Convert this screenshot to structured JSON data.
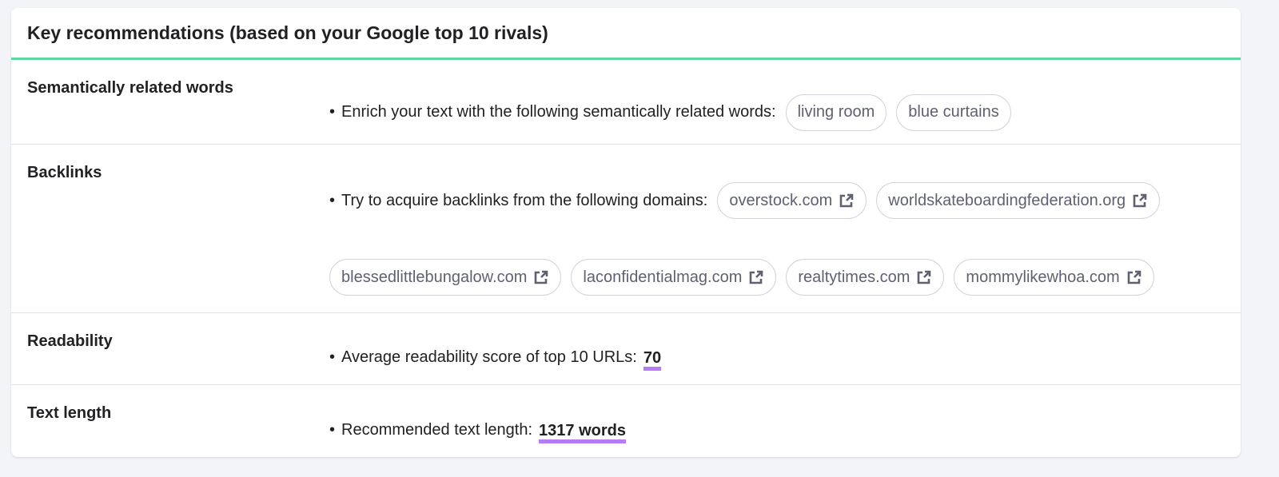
{
  "title": "Key recommendations (based on your Google top 10 rivals)",
  "colors": {
    "accent_line": "#5ed7a5",
    "underline": "#b57cf6"
  },
  "rows": [
    {
      "label": "Semantically related words",
      "text": "Enrich your text with the following semantically related words:",
      "chips": [
        "living room",
        "blue curtains"
      ]
    },
    {
      "label": "Backlinks",
      "text": "Try to acquire backlinks from the following domains:",
      "chips": [
        "overstock.com",
        "worldskateboardingfederation.org",
        "blessedlittlebungalow.com",
        "laconfidentialmag.com",
        "realtytimes.com",
        "mommylikewhoa.com"
      ],
      "chip_icon": "external-link-icon"
    },
    {
      "label": "Readability",
      "text": "Average readability score of top 10 URLs:",
      "value": "70"
    },
    {
      "label": "Text length",
      "text": "Recommended text length:",
      "value": "1317 words"
    }
  ]
}
